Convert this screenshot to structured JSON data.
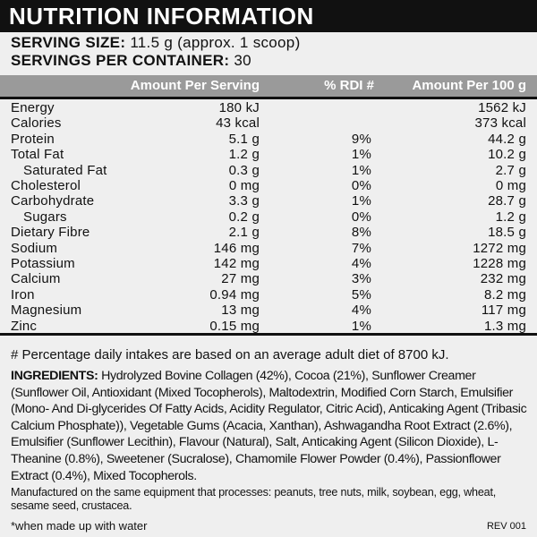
{
  "title": "NUTRITION INFORMATION",
  "serving": {
    "size_label": "SERVING SIZE:",
    "size_value": "11.5 g (approx. 1 scoop)",
    "servings_label": "SERVINGS PER CONTAINER:",
    "servings_value": "30"
  },
  "table": {
    "header": [
      "Amount Per Serving",
      "% RDI #",
      "Amount Per 100 g"
    ],
    "rows": [
      [
        "Energy",
        "180 kJ",
        null,
        "1562 kJ"
      ],
      [
        "Calories",
        "43 kcal",
        null,
        "373 kcal"
      ],
      [
        "Protein",
        "5.1 g",
        "9%",
        "44.2 g"
      ],
      [
        "Total Fat",
        "1.2 g",
        "1%",
        "10.2 g"
      ],
      [
        "Saturated Fat",
        "0.3 g",
        "1%",
        "2.7 g"
      ],
      [
        "Cholesterol",
        "0 mg",
        "0%",
        "0 mg"
      ],
      [
        "Carbohydrate",
        "3.3 g",
        "1%",
        "28.7 g"
      ],
      [
        "Sugars",
        "0.2 g",
        "0%",
        "1.2 g"
      ],
      [
        "Dietary Fibre",
        "2.1 g",
        "8%",
        "18.5 g"
      ],
      [
        "Sodium",
        "146 mg",
        "7%",
        "1272 mg"
      ],
      [
        "Potassium",
        "142 mg",
        "4%",
        "1228 mg"
      ],
      [
        "Calcium",
        "27 mg",
        "3%",
        "232 mg"
      ],
      [
        "Iron",
        "0.94 mg",
        "5%",
        "8.2 mg"
      ],
      [
        "Magnesium",
        "13 mg",
        "4%",
        "117 mg"
      ],
      [
        "Zinc",
        "0.15 mg",
        "1%",
        "1.3 mg"
      ]
    ]
  },
  "footnote": "# Percentage daily intakes are based on an average adult diet of 8700 kJ.",
  "ingredients": {
    "label": "INGREDIENTS:",
    "text": "Hydrolyzed Bovine Collagen (42%), Cocoa (21%), Sunflower Creamer (Sunflower Oil, Antioxidant (Mixed Tocopherols), Maltodextrin, Modified Corn Starch, Emulsifier (Mono- And Di-glycerides Of Fatty Acids, Acidity Regulator, Citric Acid), Anticaking Agent (Tribasic Calcium Phosphate)), Vegetable Gums (Acacia, Xanthan), Ashwagandha Root Extract (2.6%), Emulsifier (Sunflower Lecithin), Flavour (Natural), Salt, Anticaking Agent (Silicon Dioxide), L-Theanine (0.8%), Sweetener (Sucralose), Chamomile Flower Powder (0.4%), Passionflower Extract (0.4%), Mixed Tocopherols."
  },
  "allergen": "Manufactured on the same equipment that processes: peanuts, tree nuts, milk, soybean, egg, wheat, sesame seed, crustacea.",
  "note": "*when made up with water",
  "revision": "REV 001"
}
